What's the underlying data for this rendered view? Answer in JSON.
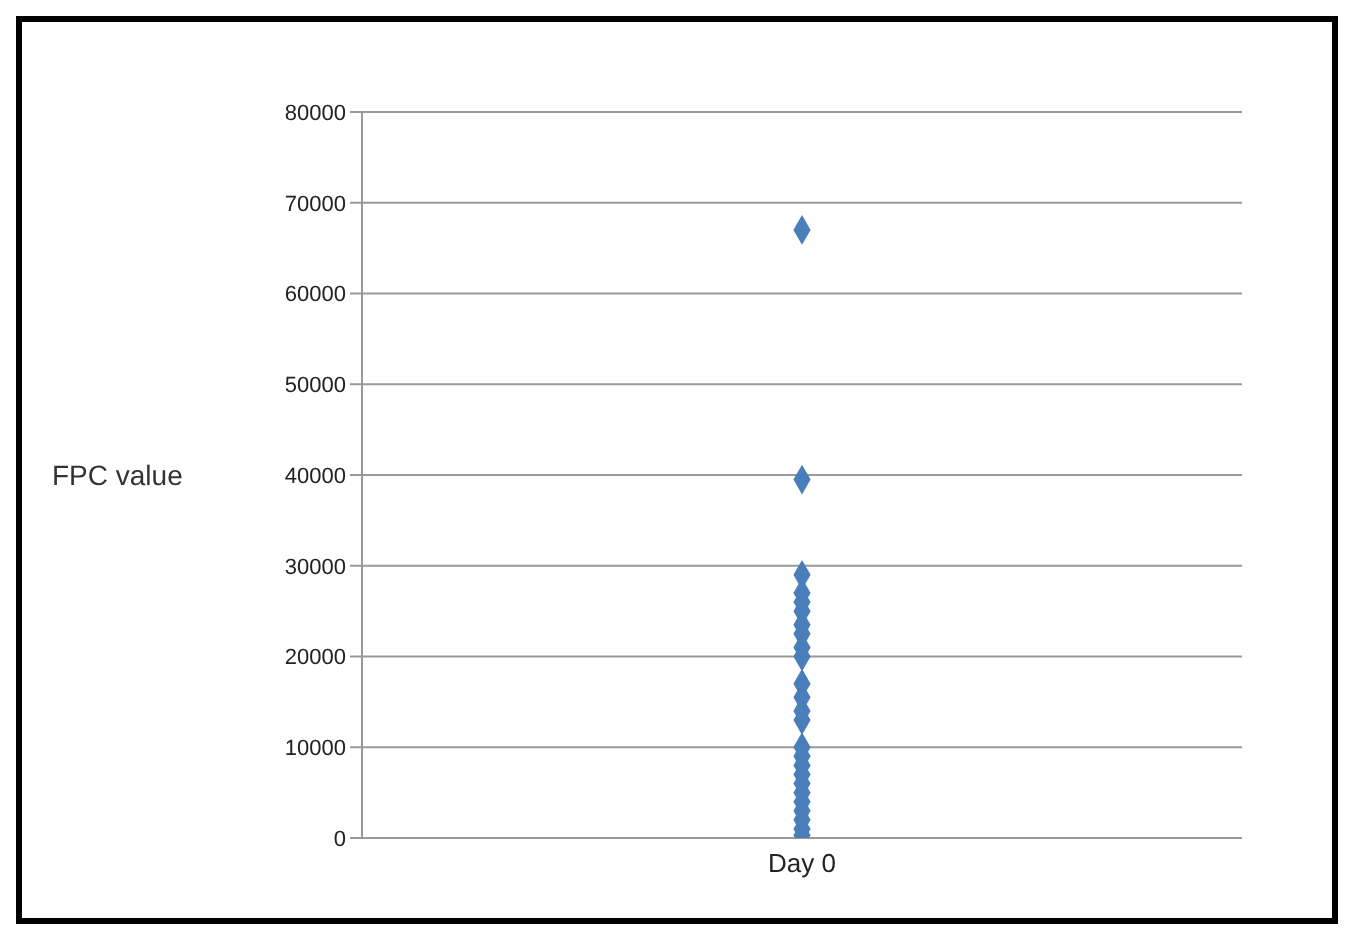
{
  "chart_data": {
    "type": "scatter",
    "ylabel": "FPC value",
    "categories": [
      "Day 0"
    ],
    "series": [
      {
        "color": "#4a7ebb",
        "x": [
          "Day 0",
          "Day 0",
          "Day 0",
          "Day 0",
          "Day 0",
          "Day 0",
          "Day 0",
          "Day 0",
          "Day 0",
          "Day 0",
          "Day 0",
          "Day 0",
          "Day 0",
          "Day 0",
          "Day 0",
          "Day 0",
          "Day 0",
          "Day 0",
          "Day 0",
          "Day 0",
          "Day 0",
          "Day 0",
          "Day 0",
          "Day 0",
          "Day 0"
        ],
        "values": [
          67000,
          39500,
          29000,
          27000,
          26000,
          25000,
          23500,
          22500,
          21000,
          20000,
          17000,
          15500,
          14000,
          13000,
          10000,
          9000,
          8000,
          7000,
          6000,
          5000,
          4000,
          3000,
          2000,
          1000,
          300
        ]
      }
    ],
    "ylim": [
      0,
      80000
    ],
    "yticks": [
      0,
      10000,
      20000,
      30000,
      40000,
      50000,
      60000,
      70000,
      80000
    ],
    "grid": "y",
    "marker": "diamond",
    "legend": false
  }
}
